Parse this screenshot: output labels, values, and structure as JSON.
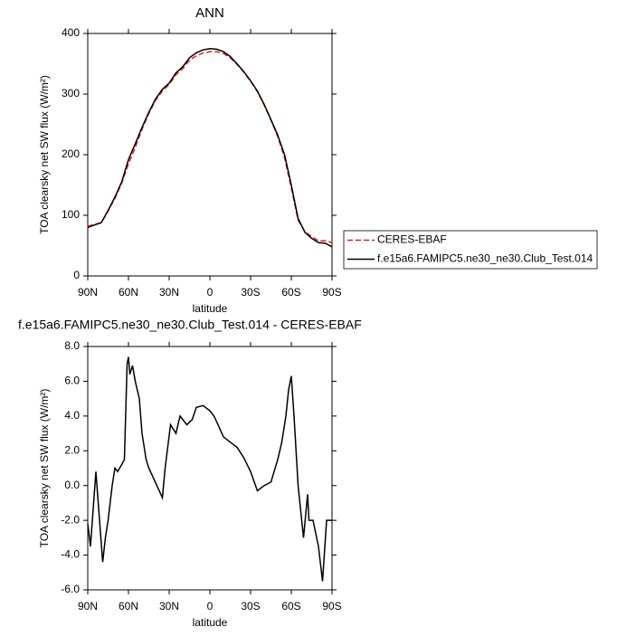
{
  "chart_data": [
    {
      "type": "line",
      "title": "ANN",
      "xlabel": "latitude",
      "ylabel": "TOA clearsky net SW flux (W/m²)",
      "x": [
        90,
        85,
        80,
        75,
        70,
        65,
        60,
        55,
        50,
        45,
        40,
        35,
        30,
        25,
        20,
        15,
        10,
        5,
        0,
        -5,
        -10,
        -15,
        -20,
        -25,
        -30,
        -35,
        -40,
        -45,
        -50,
        -55,
        -60,
        -65,
        -70,
        -75,
        -80,
        -85,
        -90
      ],
      "series": [
        {
          "name": "CERES-EBAF",
          "color": "#e0201b",
          "dashed": true,
          "values": [
            82,
            85,
            88,
            107,
            128,
            153,
            185,
            212,
            242,
            268,
            290,
            305,
            316,
            332,
            342,
            356,
            363,
            368,
            370,
            370,
            367,
            360,
            349,
            336,
            321,
            304,
            282,
            257,
            230,
            195,
            145,
            92,
            73,
            65,
            58,
            58,
            55
          ]
        },
        {
          "name": "f.e15a6.FAMIPC5.ne30_ne30.Club_Test.014",
          "color": "#000000",
          "dashed": false,
          "values": [
            80,
            84,
            88,
            108,
            130,
            155,
            192,
            218,
            245,
            270,
            292,
            308,
            318,
            335,
            345,
            360,
            368,
            373,
            375,
            374,
            370,
            362,
            350,
            337,
            322,
            305,
            283,
            258,
            232,
            200,
            150,
            95,
            72,
            62,
            55,
            54,
            48
          ]
        }
      ],
      "xlim": [
        90,
        -90
      ],
      "xticks": [
        {
          "value": 90,
          "label": "90N"
        },
        {
          "value": 60,
          "label": "60N"
        },
        {
          "value": 30,
          "label": "30N"
        },
        0,
        {
          "value": -30,
          "label": "30S"
        },
        {
          "value": -60,
          "label": "60S"
        },
        {
          "value": -90,
          "label": "90S"
        }
      ],
      "ylim": [
        0,
        400
      ],
      "yticks": [
        0,
        100,
        200,
        300,
        400
      ],
      "legend": "right"
    },
    {
      "type": "line",
      "title": "f.e15a6.FAMIPC5.ne30_ne30.Club_Test.014 - CERES-EBAF",
      "xlabel": "latitude",
      "ylabel": "TOA clearsky net SW flux (W/m²)",
      "x": [
        90,
        88,
        84,
        79,
        77,
        75,
        72,
        70,
        68,
        65,
        63,
        61,
        60,
        59,
        57,
        55,
        52,
        50,
        47,
        45,
        42,
        35,
        33,
        29,
        25,
        22,
        17,
        13,
        10,
        5,
        0,
        -3,
        -6,
        -10,
        -15,
        -20,
        -25,
        -30,
        -35,
        -40,
        -45,
        -50,
        -53,
        -56,
        -58,
        -60,
        -62,
        -65,
        -69,
        -72,
        -73,
        -76,
        -80,
        -83,
        -86,
        -90
      ],
      "series": [
        {
          "name": "f.e15a6.FAMIPC5.ne30_ne30.Club_Test.014 - CERES-EBAF",
          "color": "#000000",
          "dashed": false,
          "values": [
            -2.2,
            -3.5,
            0.8,
            -4.4,
            -3,
            -2,
            0,
            1,
            0.8,
            1.2,
            1.5,
            7,
            7.4,
            6.4,
            6.9,
            6,
            5,
            3,
            1.5,
            1,
            0.5,
            -0.7,
            1,
            3.5,
            3,
            4,
            3.5,
            3.8,
            4.5,
            4.6,
            4.3,
            4,
            3.5,
            2.8,
            2.5,
            2.2,
            1.6,
            0.8,
            -0.3,
            0,
            0.2,
            1.5,
            2.5,
            4,
            5.5,
            6.3,
            4,
            0,
            -3,
            -0.5,
            -2,
            -2,
            -3.5,
            -5.5,
            -2,
            -2
          ]
        }
      ],
      "xlim": [
        90,
        -90
      ],
      "xticks": [
        {
          "value": 90,
          "label": "90N"
        },
        {
          "value": 60,
          "label": "60N"
        },
        {
          "value": 30,
          "label": "30N"
        },
        0,
        {
          "value": -30,
          "label": "30S"
        },
        {
          "value": -60,
          "label": "60S"
        },
        {
          "value": -90,
          "label": "90S"
        }
      ],
      "ylim": [
        -6,
        8
      ],
      "yticks": [
        {
          "value": -6,
          "label": "-6.0"
        },
        {
          "value": -4,
          "label": "-4.0"
        },
        {
          "value": -2,
          "label": "-2.0"
        },
        {
          "value": 0,
          "label": "0.0"
        },
        {
          "value": 2,
          "label": "2.0"
        },
        {
          "value": 4,
          "label": "4.0"
        },
        {
          "value": 6,
          "label": "6.0"
        },
        {
          "value": 8,
          "label": "8.0"
        }
      ]
    }
  ]
}
